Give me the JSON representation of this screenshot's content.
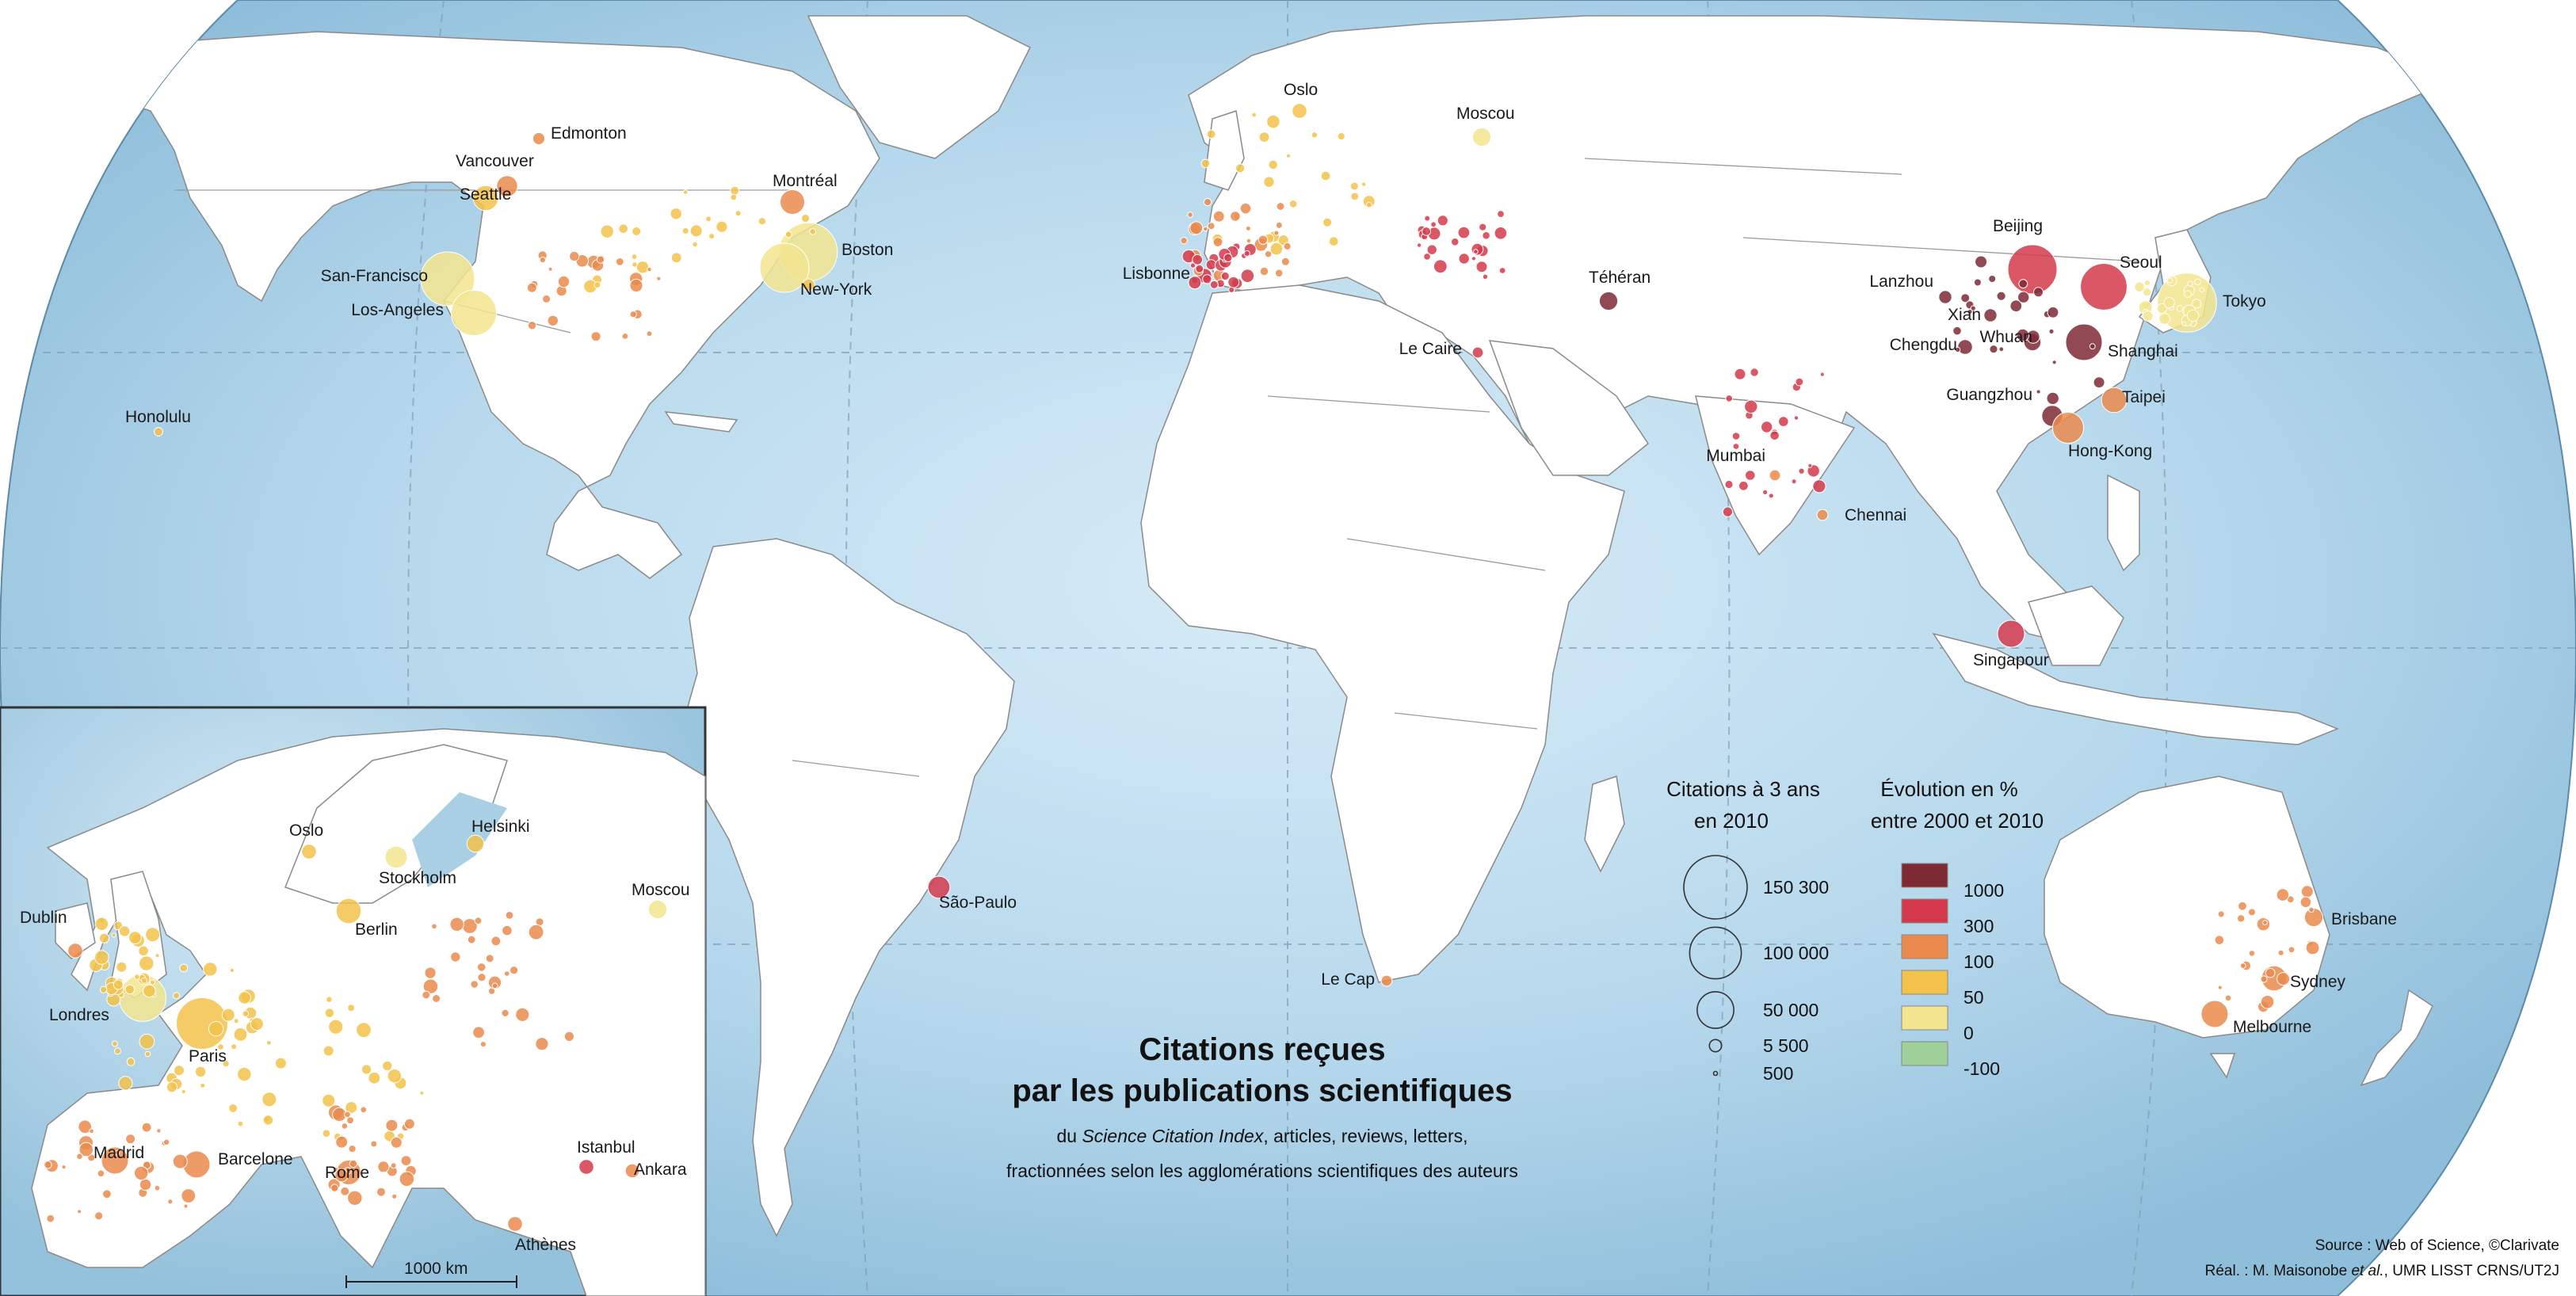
{
  "title": {
    "line1": "Citations reçues",
    "line2": "par les publications scientifiques"
  },
  "subtitle": {
    "line1_prefix": "du ",
    "line1_italic": "Science Citation Index",
    "line1_suffix": ", articles, reviews, letters,",
    "line2": "fractionnées selon les agglomérations scientifiques des auteurs"
  },
  "legend": {
    "size_title_1": "Citations à 3 ans",
    "size_title_2": "en 2010",
    "color_title_1": "Évolution en %",
    "color_title_2": "entre 2000 et 2010",
    "sizes": [
      {
        "label": "150 300",
        "value": 150300
      },
      {
        "label": "100 000",
        "value": 100000
      },
      {
        "label": "50 000",
        "value": 50000
      },
      {
        "label": "5 500",
        "value": 5500
      },
      {
        "label": "500",
        "value": 500
      }
    ],
    "color_classes": [
      {
        "color": "#7e2a35",
        "label": "1000"
      },
      {
        "color": "#d4394b",
        "label": "300"
      },
      {
        "color": "#ea8a4c",
        "label": "100"
      },
      {
        "color": "#f2c24a",
        "label": "50"
      },
      {
        "color": "#f3e58f",
        "label": "0"
      },
      {
        "color": "#9fd09a",
        "label": "-100"
      }
    ]
  },
  "source": {
    "line1": "Source : Web of Science, ©Clarivate",
    "line2_prefix": "Réal. : M. Maisonobe ",
    "line2_italic": "et al.",
    "line2_suffix": ", UMR LISST CRNS/UT2J"
  },
  "scale_bar": {
    "label": "1000 km"
  },
  "colors": {
    "ocean": "#a9cfe5",
    "ocean_center": "#d7ecf7",
    "land": "#ffffff",
    "c1000": "#7e2a35",
    "c300": "#d4394b",
    "c100": "#ea8a4c",
    "c50": "#f2c24a",
    "c0": "#f3e58f"
  },
  "cities": [
    {
      "name": "Edmonton",
      "label": "Edmonton",
      "class": "100",
      "size": 6000
    },
    {
      "name": "Vancouver",
      "label": "Vancouver",
      "class": "100",
      "size": 18000
    },
    {
      "name": "Seattle",
      "label": "Seattle",
      "class": "50",
      "size": 26000
    },
    {
      "name": "San-Francisco",
      "label": "San-Francisco",
      "class": "0",
      "size": 120000
    },
    {
      "name": "Los-Angeles",
      "label": "Los-Angeles",
      "class": "0",
      "size": 85000
    },
    {
      "name": "Montreal",
      "label": "Montréal",
      "class": "100",
      "size": 25000
    },
    {
      "name": "Boston",
      "label": "Boston",
      "class": "0",
      "size": 140000
    },
    {
      "name": "New-York",
      "label": "New-York",
      "class": "0",
      "size": 100000
    },
    {
      "name": "Honolulu",
      "label": "Honolulu",
      "class": "50",
      "size": 3000
    },
    {
      "name": "Oslo",
      "label": "Oslo",
      "class": "50",
      "size": 9000
    },
    {
      "name": "Moscou",
      "label": "Moscou",
      "class": "0",
      "size": 14000
    },
    {
      "name": "Lisbonne",
      "label": "Lisbonne",
      "class": "300",
      "size": 9000
    },
    {
      "name": "Le Caire",
      "label": "Le Caire",
      "class": "300",
      "size": 5000
    },
    {
      "name": "Teheran",
      "label": "Téhéran",
      "class": "1000",
      "size": 14000
    },
    {
      "name": "Beijing",
      "label": "Beijing",
      "class": "300",
      "size": 100000
    },
    {
      "name": "Seoul",
      "label": "Seoul",
      "class": "300",
      "size": 90000
    },
    {
      "name": "Tokyo",
      "label": "Tokyo",
      "class": "0",
      "size": 145000
    },
    {
      "name": "Lanzhou",
      "label": "Lanzhou",
      "class": "1000",
      "size": 7000
    },
    {
      "name": "Xian",
      "label": "Xian",
      "class": "1000",
      "size": 7000
    },
    {
      "name": "Whuan",
      "label": "Whuan",
      "class": "1000",
      "size": 12000
    },
    {
      "name": "Chengdu",
      "label": "Chengdu",
      "class": "1000",
      "size": 9000
    },
    {
      "name": "Shanghai",
      "label": "Shanghai",
      "class": "1000",
      "size": 55000
    },
    {
      "name": "Guangzhou",
      "label": "Guangzhou",
      "class": "1000",
      "size": 18000
    },
    {
      "name": "Taipei",
      "label": "Taipei",
      "class": "100",
      "size": 26000
    },
    {
      "name": "Hong-Kong",
      "label": "Hong-Kong",
      "class": "100",
      "size": 40000
    },
    {
      "name": "Mumbai",
      "label": "Mumbai",
      "class": "100",
      "size": 5000
    },
    {
      "name": "Chennai",
      "label": "Chennai",
      "class": "100",
      "size": 5000
    },
    {
      "name": "Singapour",
      "label": "Singapour",
      "class": "300",
      "size": 30000
    },
    {
      "name": "Sao-Paulo",
      "label": "São-Paulo",
      "class": "300",
      "size": 20000
    },
    {
      "name": "Le Cap",
      "label": "Le Cap",
      "class": "100",
      "size": 5000
    },
    {
      "name": "Brisbane",
      "label": "Brisbane",
      "class": "100",
      "size": 14000
    },
    {
      "name": "Sydney",
      "label": "Sydney",
      "class": "100",
      "size": 26000
    },
    {
      "name": "Melbourne",
      "label": "Melbourne",
      "class": "100",
      "size": 30000
    }
  ],
  "inset_cities": [
    {
      "name": "Oslo",
      "label": "Oslo",
      "class": "50",
      "size": 9000
    },
    {
      "name": "Helsinki",
      "label": "Helsinki",
      "class": "50",
      "size": 12000
    },
    {
      "name": "Stockholm",
      "label": "Stockholm",
      "class": "0",
      "size": 20000
    },
    {
      "name": "Dublin",
      "label": "Dublin",
      "class": "100",
      "size": 9000
    },
    {
      "name": "Berlin",
      "label": "Berlin",
      "class": "50",
      "size": 26000
    },
    {
      "name": "Moscou",
      "label": "Moscou",
      "class": "0",
      "size": 14000
    },
    {
      "name": "Londres",
      "label": "Londres",
      "class": "0",
      "size": 90000
    },
    {
      "name": "Paris",
      "label": "Paris",
      "class": "50",
      "size": 110000
    },
    {
      "name": "Madrid",
      "label": "Madrid",
      "class": "100",
      "size": 30000
    },
    {
      "name": "Barcelone",
      "label": "Barcelone",
      "class": "100",
      "size": 30000
    },
    {
      "name": "Rome",
      "label": "Rome",
      "class": "100",
      "size": 25000
    },
    {
      "name": "Istanbul",
      "label": "Istanbul",
      "class": "300",
      "size": 9000
    },
    {
      "name": "Ankara",
      "label": "Ankara",
      "class": "100",
      "size": 8000
    },
    {
      "name": "Athenes",
      "label": "Athènes",
      "class": "100",
      "size": 9000
    }
  ]
}
